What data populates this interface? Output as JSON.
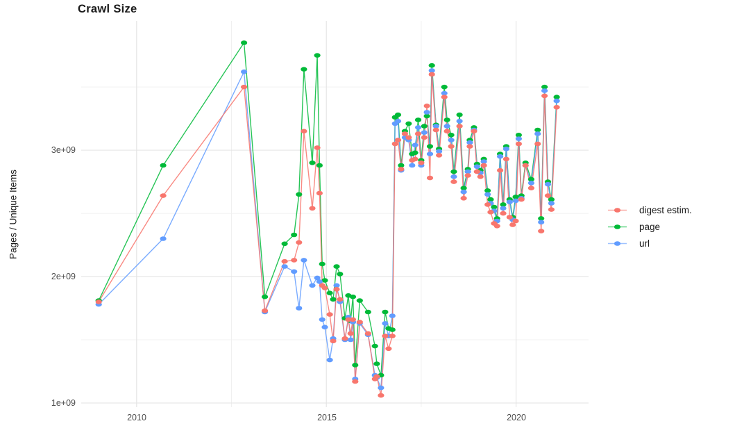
{
  "title": "Crawl Size",
  "y_axis": {
    "label": "Pages / Unique Items",
    "ticks": [
      "3e+09",
      "2e+09",
      "1e+09"
    ]
  },
  "x_axis": {
    "ticks": [
      "2010",
      "2015",
      "2020"
    ]
  },
  "legend": {
    "items": [
      {
        "label": "digest estim.",
        "color": "#F8766D"
      },
      {
        "label": "page",
        "color": "#00BA38"
      },
      {
        "label": "url",
        "color": "#619CFF"
      }
    ]
  },
  "chart_data": {
    "type": "line",
    "title": "Crawl Size",
    "xlabel": "",
    "ylabel": "Pages / Unique Items",
    "unit": "items, value = billions (1e9)",
    "grid": {
      "on": true,
      "x_major": [
        2010,
        2015,
        2020
      ],
      "x_minor": [
        2012.5,
        2017.5
      ],
      "y_major": [
        1,
        2,
        3
      ],
      "y_minor": [
        1.5,
        2.5,
        3.5
      ]
    },
    "legend_position": "right",
    "xlim": [
      2008.54,
      2021.91
    ],
    "ylim_billions": [
      0.967,
      4.023
    ],
    "x": [
      2009.0,
      2010.7,
      2012.83,
      2013.38,
      2013.9,
      2014.15,
      2014.28,
      2014.41,
      2014.63,
      2014.76,
      2014.82,
      2014.89,
      2014.96,
      2015.09,
      2015.18,
      2015.27,
      2015.36,
      2015.49,
      2015.58,
      2015.64,
      2015.7,
      2015.76,
      2015.88,
      2016.1,
      2016.28,
      2016.33,
      2016.44,
      2016.55,
      2016.64,
      2016.74,
      2016.81,
      2016.89,
      2016.97,
      2017.07,
      2017.17,
      2017.26,
      2017.34,
      2017.42,
      2017.5,
      2017.58,
      2017.65,
      2017.73,
      2017.78,
      2017.89,
      2017.97,
      2018.11,
      2018.18,
      2018.29,
      2018.36,
      2018.51,
      2018.62,
      2018.73,
      2018.78,
      2018.89,
      2018.97,
      2019.06,
      2019.15,
      2019.25,
      2019.33,
      2019.42,
      2019.5,
      2019.58,
      2019.66,
      2019.74,
      2019.83,
      2019.91,
      2019.99,
      2020.07,
      2020.14,
      2020.25,
      2020.4,
      2020.57,
      2020.66,
      2020.75,
      2020.84,
      2020.93,
      2021.07
    ],
    "series": [
      {
        "name": "digest estim.",
        "color": "#F8766D",
        "values": [
          1.8,
          2.64,
          3.5,
          1.73,
          2.12,
          2.13,
          2.27,
          3.15,
          2.54,
          3.02,
          2.66,
          1.93,
          1.91,
          1.7,
          1.49,
          1.9,
          1.82,
          1.51,
          1.66,
          1.55,
          1.66,
          1.17,
          1.64,
          1.55,
          1.19,
          1.21,
          1.06,
          1.53,
          1.43,
          1.53,
          3.05,
          3.08,
          2.85,
          3.13,
          3.1,
          2.92,
          2.93,
          3.13,
          2.9,
          3.1,
          3.35,
          2.78,
          3.6,
          3.16,
          2.96,
          3.42,
          3.15,
          3.03,
          2.75,
          3.19,
          2.62,
          2.8,
          3.03,
          3.15,
          2.83,
          2.79,
          2.88,
          2.57,
          2.51,
          2.42,
          2.4,
          2.84,
          2.5,
          2.93,
          2.47,
          2.41,
          2.44,
          3.05,
          2.61,
          2.88,
          2.7,
          3.05,
          2.36,
          3.43,
          2.64,
          2.53,
          3.34
        ]
      },
      {
        "name": "page",
        "color": "#00BA38",
        "values": [
          1.81,
          2.88,
          3.85,
          1.84,
          2.26,
          2.33,
          2.65,
          3.64,
          2.9,
          3.75,
          2.88,
          2.1,
          1.97,
          1.87,
          1.82,
          2.08,
          2.02,
          1.67,
          1.85,
          1.65,
          1.84,
          1.3,
          1.81,
          1.72,
          1.45,
          1.31,
          1.22,
          1.72,
          1.59,
          1.58,
          3.26,
          3.28,
          2.88,
          3.15,
          3.21,
          2.97,
          2.98,
          3.24,
          2.92,
          3.19,
          3.27,
          3.03,
          3.67,
          3.2,
          3.01,
          3.5,
          3.24,
          3.12,
          2.83,
          3.28,
          2.7,
          2.85,
          3.08,
          3.18,
          2.89,
          2.84,
          2.93,
          2.68,
          2.61,
          2.55,
          2.46,
          2.97,
          2.57,
          3.03,
          2.61,
          2.47,
          2.63,
          3.12,
          2.64,
          2.9,
          2.77,
          3.16,
          2.46,
          3.5,
          2.75,
          2.61,
          3.42
        ]
      },
      {
        "name": "url",
        "color": "#619CFF",
        "values": [
          1.78,
          2.3,
          3.62,
          1.72,
          2.08,
          2.04,
          1.75,
          2.13,
          1.93,
          1.99,
          1.96,
          1.66,
          1.6,
          1.34,
          1.51,
          1.93,
          1.8,
          1.5,
          1.68,
          1.5,
          1.64,
          1.19,
          1.63,
          1.54,
          1.22,
          1.2,
          1.12,
          1.63,
          1.53,
          1.69,
          3.21,
          3.23,
          2.84,
          3.1,
          3.08,
          2.88,
          3.04,
          3.18,
          2.88,
          3.14,
          3.3,
          2.97,
          3.63,
          3.19,
          2.99,
          3.45,
          3.19,
          3.08,
          2.79,
          3.23,
          2.67,
          2.83,
          3.06,
          3.16,
          2.87,
          2.82,
          2.91,
          2.65,
          2.58,
          2.52,
          2.44,
          2.95,
          2.54,
          3.01,
          2.59,
          2.45,
          2.6,
          3.09,
          2.62,
          2.88,
          2.74,
          3.13,
          2.43,
          3.47,
          2.73,
          2.58,
          3.39
        ]
      }
    ]
  },
  "style": {
    "grid_major_color": "#E3E3E3",
    "grid_minor_color": "#F0F0F0",
    "background": "#FFFFFF"
  }
}
